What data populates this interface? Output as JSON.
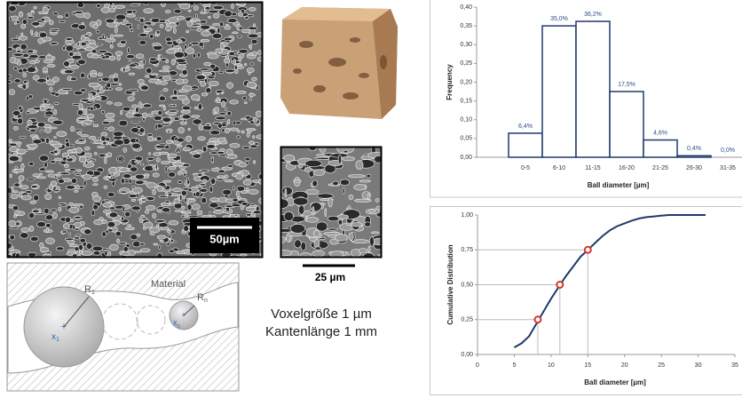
{
  "images": {
    "scale_bar_large": "50µm",
    "scale_bar_small": "25 µm"
  },
  "diagram": {
    "material": "Material",
    "r1": "R",
    "r1_sub": "1",
    "rn": "R",
    "rn_sub": "n",
    "x1": "x",
    "x1_sub": "1",
    "xn": "x",
    "xn_sub": "n"
  },
  "caption": {
    "line1": "Voxelgröße 1 µm",
    "line2": "Kantenlänge 1 mm"
  },
  "chart_data": [
    {
      "type": "bar",
      "y_label": "Frequency",
      "x_label": "Ball diameter [µm]",
      "categories": [
        "0-5",
        "6-10",
        "11-15",
        "16-20",
        "21-25",
        "26-30",
        "31-35"
      ],
      "values": [
        0.064,
        0.35,
        0.362,
        0.175,
        0.046,
        0.004,
        0.0
      ],
      "value_labels": [
        "6,4%",
        "35,0%",
        "36,2%",
        "17,5%",
        "4,6%",
        "0,4%",
        "0,0%"
      ],
      "color": "#1f3a6e",
      "label_color": "#2e4d8a",
      "ylim": [
        0,
        0.4
      ],
      "yticks": [
        {
          "value": 0,
          "label": "0,00"
        },
        {
          "value": 0.05,
          "label": "0,05"
        },
        {
          "value": 0.1,
          "label": "0,10"
        },
        {
          "value": 0.15,
          "label": "0,15"
        },
        {
          "value": 0.2,
          "label": "0,20"
        },
        {
          "value": 0.25,
          "label": "0,25"
        },
        {
          "value": 0.3,
          "label": "0,30"
        },
        {
          "value": 0.35,
          "label": "0,35"
        },
        {
          "value": 0.4,
          "label": "0,40"
        }
      ],
      "grid": false
    },
    {
      "type": "line",
      "y_label": "Cumulative Distribution",
      "x_label": "Ball diameter [µm]",
      "x": [
        5,
        6,
        7,
        8,
        9,
        10,
        11,
        12,
        13,
        14,
        15,
        16,
        17,
        18,
        19,
        20,
        21,
        22,
        23,
        24,
        25,
        26,
        27,
        28,
        29,
        30,
        31
      ],
      "values": [
        0.05,
        0.08,
        0.13,
        0.22,
        0.31,
        0.4,
        0.48,
        0.56,
        0.63,
        0.7,
        0.75,
        0.8,
        0.85,
        0.89,
        0.92,
        0.94,
        0.96,
        0.975,
        0.985,
        0.99,
        0.995,
        1.0,
        1.0,
        1.0,
        1.0,
        1.0,
        1.0
      ],
      "color": "#1f3a6e",
      "markers": {
        "x": [
          8.2,
          11.2,
          15
        ],
        "values": [
          0.25,
          0.5,
          0.75
        ],
        "color": "#d9342b"
      },
      "xlim": [
        0,
        35
      ],
      "xticks": [
        0,
        5,
        10,
        15,
        20,
        25,
        30,
        35
      ],
      "ylim": [
        0,
        1
      ],
      "yticks": [
        {
          "value": 0,
          "label": "0,00"
        },
        {
          "value": 0.25,
          "label": "0,25"
        },
        {
          "value": 0.5,
          "label": "0,50"
        },
        {
          "value": 0.75,
          "label": "0,75"
        },
        {
          "value": 1,
          "label": "1,00"
        }
      ],
      "grid": false
    }
  ]
}
